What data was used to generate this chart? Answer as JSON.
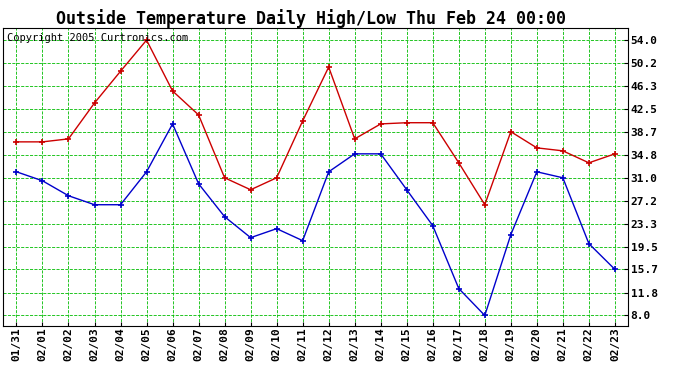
{
  "title": "Outside Temperature Daily High/Low Thu Feb 24 00:00",
  "copyright": "Copyright 2005 Curtronics.com",
  "x_labels": [
    "01/31",
    "02/01",
    "02/02",
    "02/03",
    "02/04",
    "02/05",
    "02/06",
    "02/07",
    "02/08",
    "02/09",
    "02/10",
    "02/11",
    "02/12",
    "02/13",
    "02/14",
    "02/15",
    "02/16",
    "02/17",
    "02/18",
    "02/19",
    "02/20",
    "02/21",
    "02/22",
    "02/23"
  ],
  "high_temps": [
    37.0,
    37.0,
    37.5,
    43.5,
    48.8,
    54.0,
    45.5,
    41.5,
    31.0,
    29.0,
    31.0,
    40.5,
    49.5,
    37.5,
    40.0,
    40.2,
    40.2,
    33.5,
    26.5,
    38.7,
    36.0,
    35.5,
    33.5,
    35.0
  ],
  "low_temps": [
    32.0,
    30.5,
    28.0,
    26.5,
    26.5,
    32.0,
    40.0,
    30.0,
    24.5,
    21.0,
    22.5,
    20.5,
    32.0,
    35.0,
    35.0,
    29.0,
    23.0,
    12.5,
    8.0,
    21.5,
    32.0,
    31.0,
    20.0,
    15.7
  ],
  "high_color": "#cc0000",
  "low_color": "#0000cc",
  "bg_color": "#ffffff",
  "plot_bg_color": "#ffffff",
  "grid_color": "#00bb00",
  "y_ticks": [
    8.0,
    11.8,
    15.7,
    19.5,
    23.3,
    27.2,
    31.0,
    34.8,
    38.7,
    42.5,
    46.3,
    50.2,
    54.0
  ],
  "ylim": [
    6.2,
    56.0
  ],
  "title_fontsize": 12,
  "tick_fontsize": 8,
  "copyright_fontsize": 7.5
}
